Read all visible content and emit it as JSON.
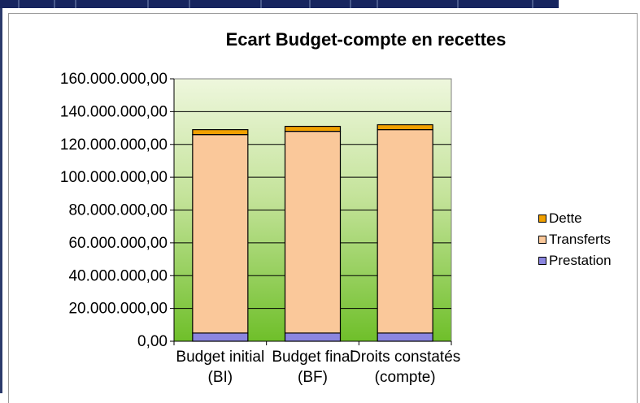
{
  "chart_data": {
    "type": "bar",
    "stacked": true,
    "title": "Ecart Budget-compte en recettes",
    "categories": [
      [
        "Budget initial",
        "(BI)"
      ],
      [
        "Budget final",
        "(BF)"
      ],
      [
        "Droits constatés",
        "(compte)"
      ]
    ],
    "series": [
      {
        "name": "Prestation",
        "color": "#8b86e0",
        "values": [
          5000000,
          5000000,
          5000000
        ]
      },
      {
        "name": "Transferts",
        "color": "#fac89a",
        "values": [
          121000000,
          123000000,
          124000000
        ]
      },
      {
        "name": "Dette",
        "color": "#f0a000",
        "values": [
          3000000,
          3000000,
          3000000
        ]
      }
    ],
    "ylim": [
      0,
      160000000
    ],
    "ytick_step": 20000000,
    "yticks": [
      "0,00",
      "20.000.000,00",
      "40.000.000,00",
      "60.000.000,00",
      "80.000.000,00",
      "100.000.000,00",
      "120.000.000,00",
      "140.000.000,00",
      "160.000.000,00"
    ],
    "legend_position": "right",
    "legend_order": [
      "Dette",
      "Transferts",
      "Prestation"
    ],
    "plot_background": "gradient light-green to green",
    "grid": true
  }
}
